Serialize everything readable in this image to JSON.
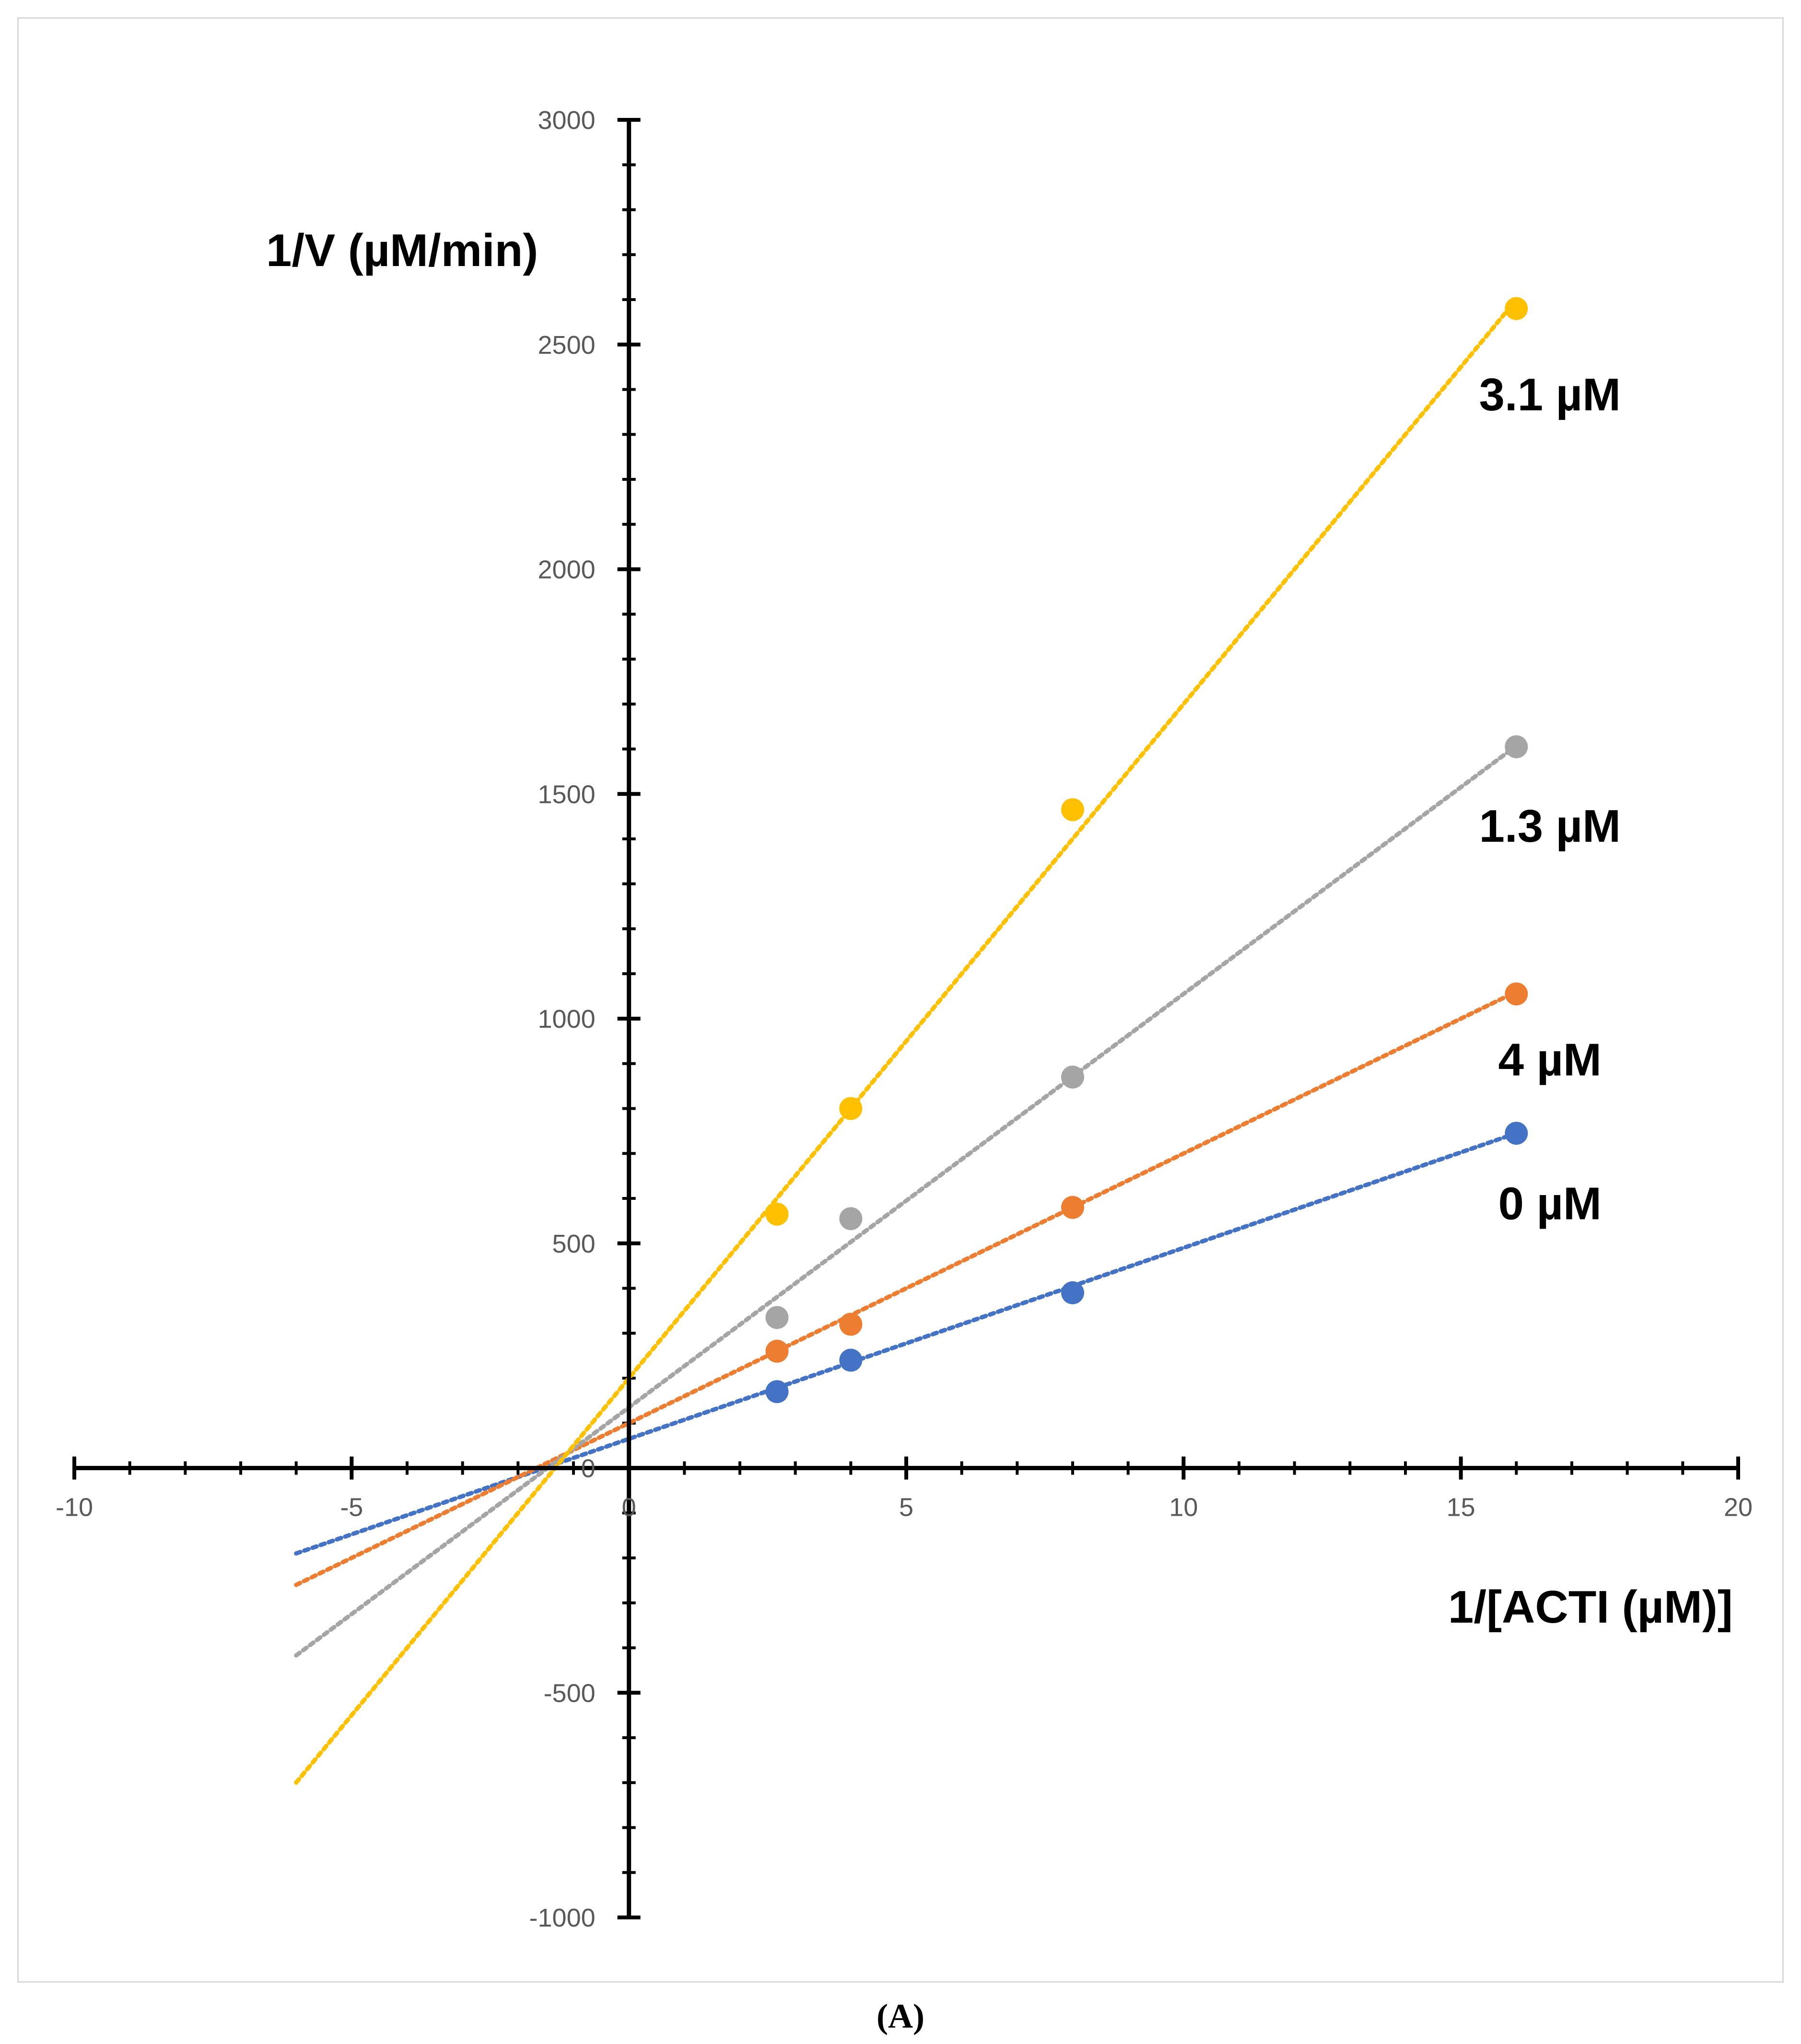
{
  "chart_data": {
    "type": "scatter",
    "xlabel": "1/[ACTI (µM)]",
    "ylabel": "1/V (µM/min)",
    "panel_label": "(A)",
    "xlim": [
      -10,
      20
    ],
    "ylim": [
      -1000,
      3000
    ],
    "x_ticks": [
      -10,
      -5,
      0,
      5,
      10,
      15,
      20
    ],
    "y_ticks": [
      -1000,
      -500,
      0,
      500,
      1000,
      1500,
      2000,
      2500,
      3000
    ],
    "x_ticks_text": [
      "-10",
      "-5",
      "0",
      "5",
      "10",
      "15",
      "20"
    ],
    "y_ticks_text": [
      "-1000",
      "-500",
      "0",
      "500",
      "1000",
      "1500",
      "2000",
      "2500",
      "3000"
    ],
    "trendline_x_range": [
      -6,
      16
    ],
    "series": [
      {
        "name": "0 µM",
        "color": "#4472c4",
        "x": [
          2.67,
          4,
          8,
          16
        ],
        "y": [
          170,
          240,
          390,
          745
        ],
        "trend_slope": 42.5,
        "trend_intercept": 65,
        "label_anchor": [
          16,
          590
        ]
      },
      {
        "name": "4 µM",
        "color": "#ed7d31",
        "x": [
          2.67,
          4,
          8,
          16
        ],
        "y": [
          260,
          320,
          580,
          1055
        ],
        "trend_slope": 60,
        "trend_intercept": 100,
        "label_anchor": [
          16,
          910
        ]
      },
      {
        "name": "1.3 µM",
        "color": "#a5a5a5",
        "x": [
          2.67,
          4,
          8,
          16
        ],
        "y": [
          335,
          555,
          870,
          1605
        ],
        "trend_slope": 92,
        "trend_intercept": 135,
        "label_anchor": [
          16,
          1430
        ]
      },
      {
        "name": "3.1 µM",
        "color": "#ffc000",
        "x": [
          2.67,
          4,
          8,
          16
        ],
        "y": [
          565,
          800,
          1465,
          2580
        ],
        "trend_slope": 150,
        "trend_intercept": 200,
        "label_anchor": [
          16,
          2390
        ]
      }
    ]
  }
}
